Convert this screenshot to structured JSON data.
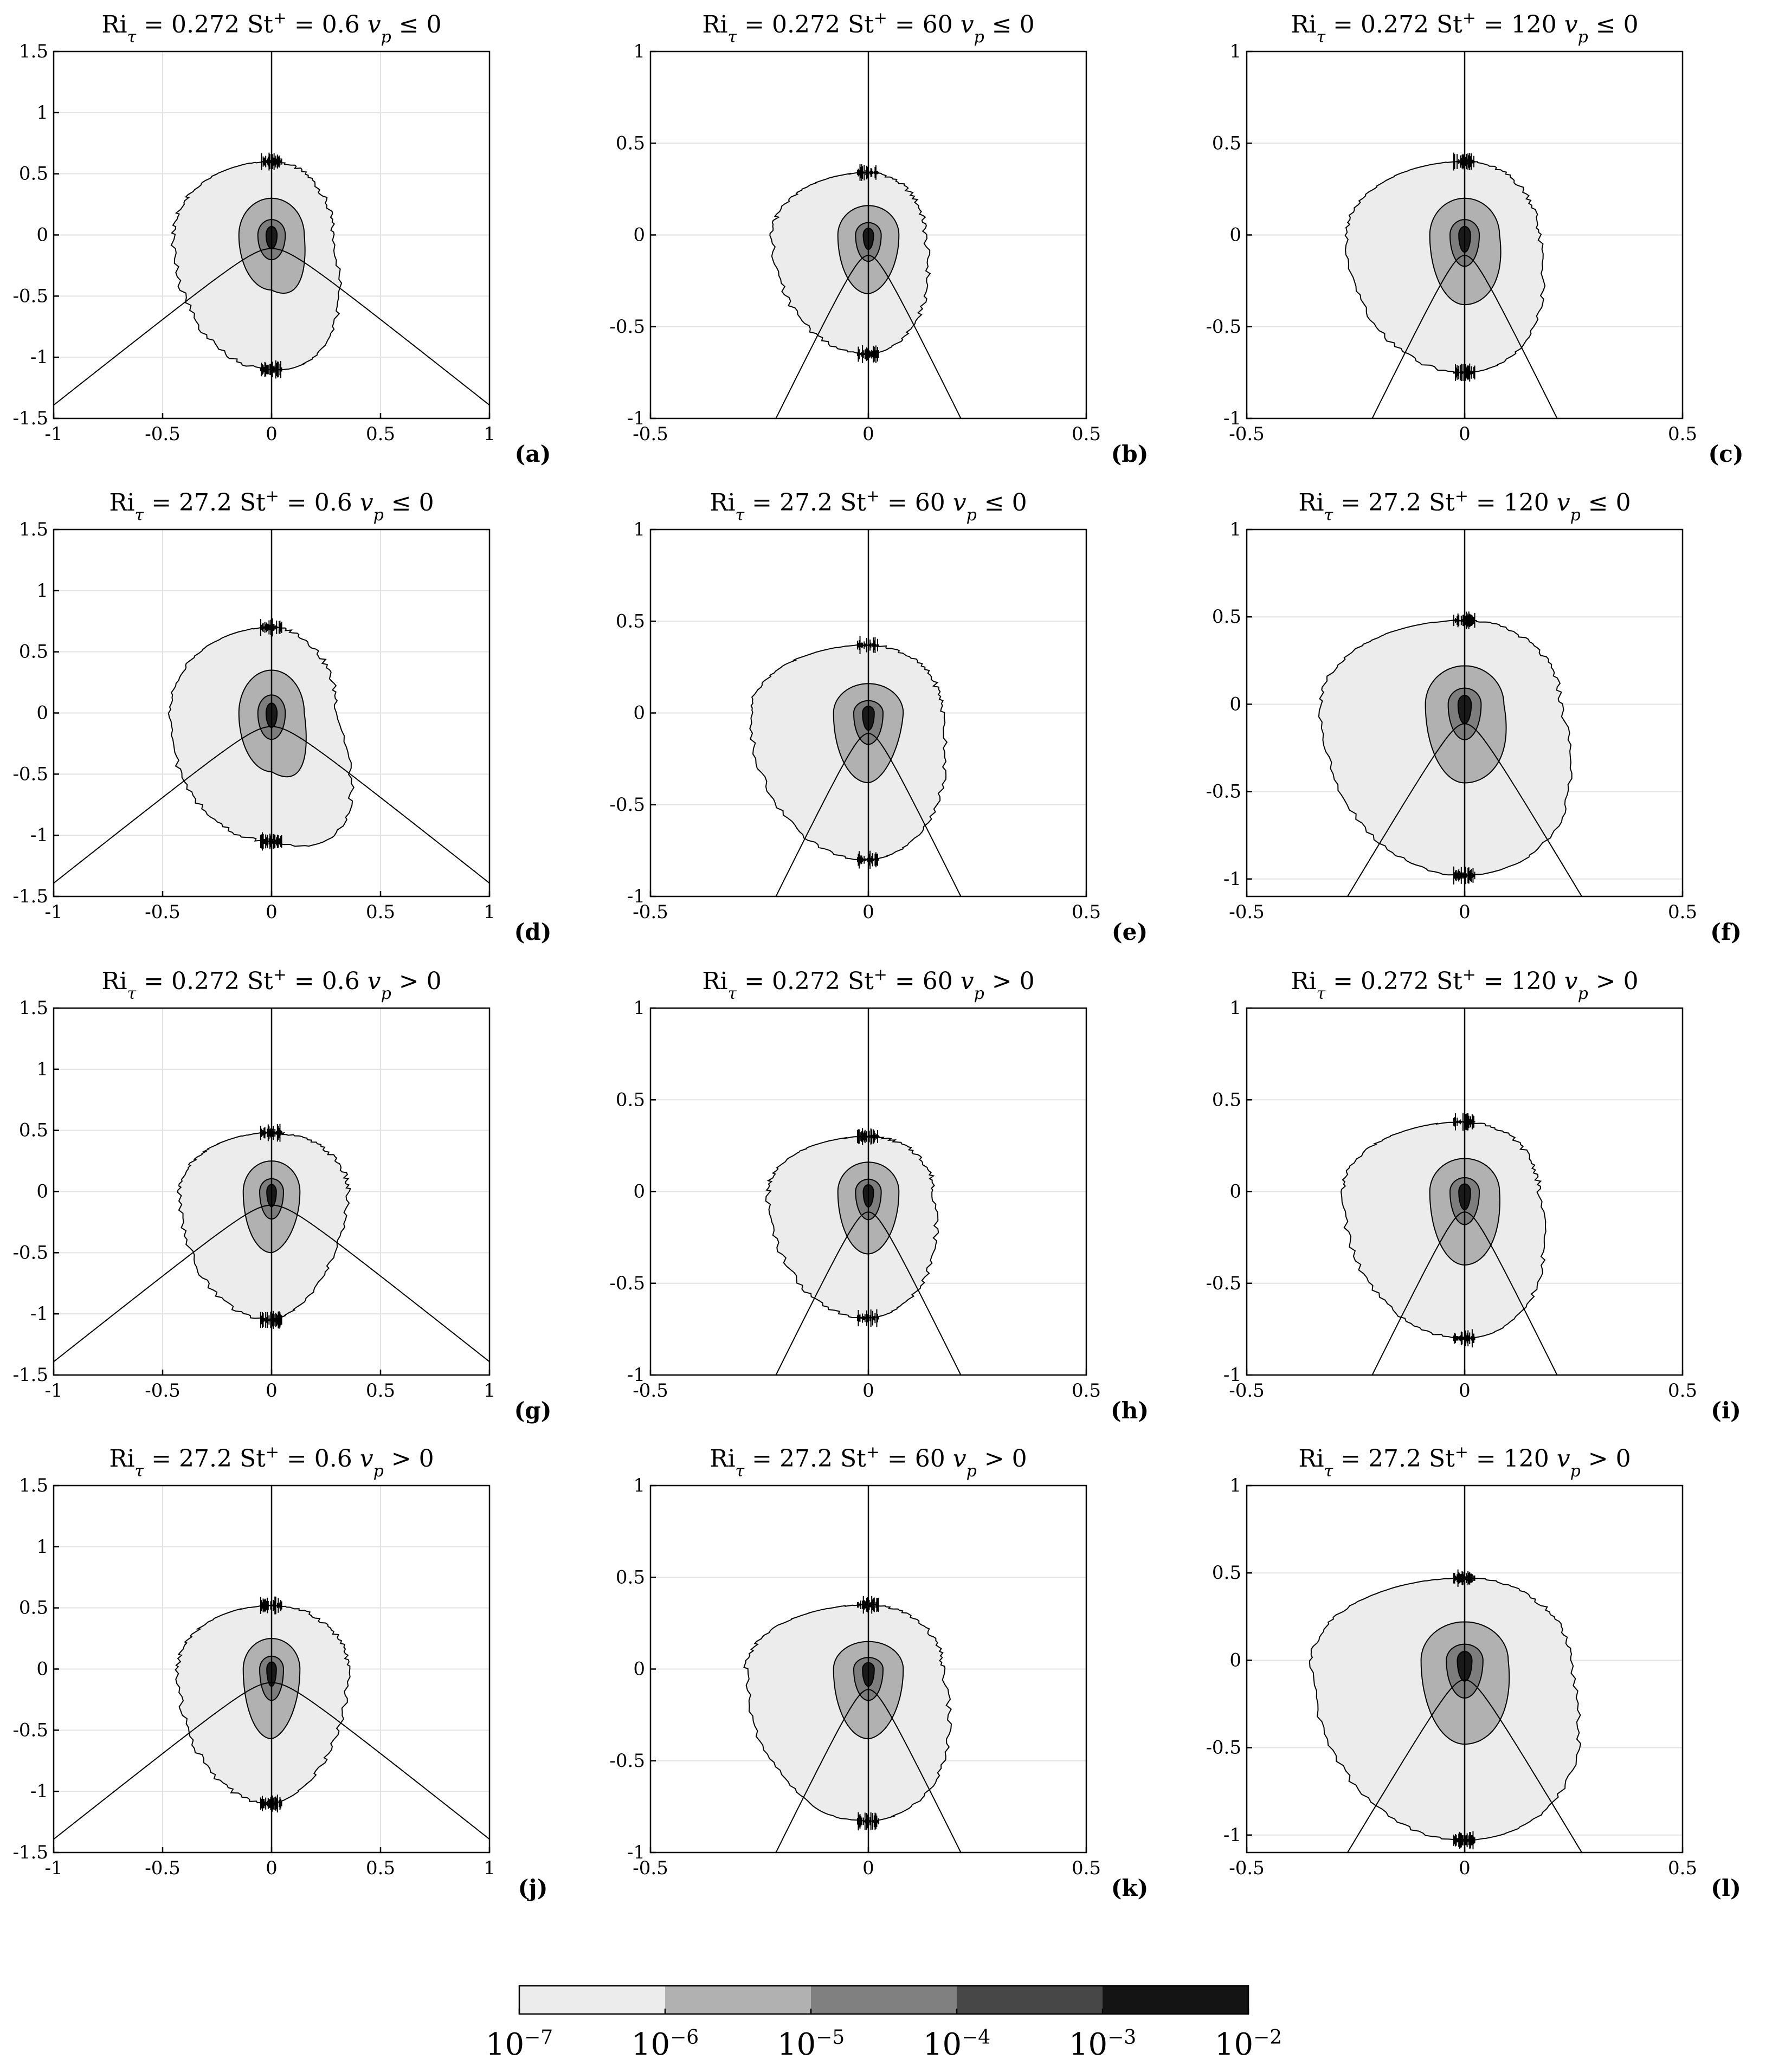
{
  "chart_data": {
    "type": "contour",
    "description_axes": "Each panel: filled contour levels with a vertical line at x = 0 and a hyperbola-like curve y ~ x^2 form",
    "panels": [
      {
        "label": "(a)",
        "ri": "0.272",
        "st": "0.6",
        "cond": "≤ 0",
        "xlim": [
          -1,
          1
        ],
        "ylim": [
          -1.5,
          1.5
        ],
        "xticks": [
          "-1",
          "-0.5",
          "0",
          "0.5",
          "1"
        ],
        "yticks": [
          "-1.5",
          "-1",
          "-0.5",
          "0",
          "0.5",
          "1",
          "1.5"
        ],
        "curve_k": 2.0,
        "outer": {
          "top": 0.6,
          "bottom": -1.1,
          "left": -0.45,
          "right": 0.28,
          "tip": [
            0.45,
            -1.18
          ]
        },
        "inner": {
          "top": 0.3,
          "bottom": -0.45,
          "width": 0.15,
          "tip": [
            0.18,
            -0.6
          ]
        }
      },
      {
        "label": "(b)",
        "ri": "0.272",
        "st": "60",
        "cond": "≤ 0",
        "xlim": [
          -0.5,
          0.5
        ],
        "ylim": [
          -1,
          1
        ],
        "xticks": [
          "-0.5",
          "0",
          "0.5"
        ],
        "yticks": [
          "-1",
          "-0.5",
          "0",
          "0.5",
          "1"
        ],
        "curve_k": 6.8,
        "outer": {
          "top": 0.34,
          "bottom": -0.65,
          "left": -0.22,
          "right": 0.13,
          "tip": [
            0.18,
            -0.62
          ]
        },
        "inner": {
          "top": 0.16,
          "bottom": -0.32,
          "width": 0.07,
          "tip": [
            0.07,
            -0.3
          ]
        }
      },
      {
        "label": "(c)",
        "ri": "0.272",
        "st": "120",
        "cond": "≤ 0",
        "xlim": [
          -0.5,
          0.5
        ],
        "ylim": [
          -1,
          1
        ],
        "xticks": [
          "-0.5",
          "0",
          "0.5"
        ],
        "yticks": [
          "-1",
          "-0.5",
          "0",
          "0.5",
          "1"
        ],
        "curve_k": 6.8,
        "outer": {
          "top": 0.4,
          "bottom": -0.75,
          "left": -0.27,
          "right": 0.17,
          "tip": [
            0.24,
            -0.75
          ]
        },
        "inner": {
          "top": 0.2,
          "bottom": -0.38,
          "width": 0.08,
          "tip": [
            0.1,
            -0.38
          ]
        }
      },
      {
        "label": "(d)",
        "ri": "27.2",
        "st": "0.6",
        "cond": "≤ 0",
        "xlim": [
          -1,
          1
        ],
        "ylim": [
          -1.5,
          1.5
        ],
        "xticks": [
          "-1",
          "-0.5",
          "0",
          "0.5",
          "1"
        ],
        "yticks": [
          "-1.5",
          "-1",
          "-0.5",
          "0",
          "0.5",
          "1",
          "1.5"
        ],
        "curve_k": 2.0,
        "outer": {
          "top": 0.7,
          "bottom": -1.05,
          "left": -0.47,
          "right": 0.3,
          "tip": [
            0.57,
            -1.38
          ]
        },
        "inner": {
          "top": 0.35,
          "bottom": -0.48,
          "width": 0.15,
          "tip": [
            0.2,
            -0.68
          ]
        }
      },
      {
        "label": "(e)",
        "ri": "27.2",
        "st": "60",
        "cond": "≤ 0",
        "xlim": [
          -0.5,
          0.5
        ],
        "ylim": [
          -1,
          1
        ],
        "xticks": [
          "-0.5",
          "0",
          "0.5"
        ],
        "yticks": [
          "-1",
          "-0.5",
          "0",
          "0.5",
          "1"
        ],
        "curve_k": 6.8,
        "outer": {
          "top": 0.37,
          "bottom": -0.8,
          "left": -0.27,
          "right": 0.17,
          "tip": [
            0.23,
            -0.77
          ]
        },
        "inner": {
          "top": 0.16,
          "bottom": -0.38,
          "width": 0.08,
          "tip": [
            0.07,
            -0.36
          ]
        }
      },
      {
        "label": "(f)",
        "ri": "27.2",
        "st": "120",
        "cond": "≤ 0",
        "xlim": [
          -0.5,
          0.5
        ],
        "ylim": [
          -1.1,
          1
        ],
        "xticks": [
          "-0.5",
          "0",
          "0.5"
        ],
        "yticks": [
          "-1",
          "-0.5",
          "0",
          "0.5",
          "1"
        ],
        "curve_k": 5.9,
        "outer": {
          "top": 0.48,
          "bottom": -0.98,
          "left": -0.33,
          "right": 0.22,
          "tip": [
            0.35,
            -0.97
          ]
        },
        "inner": {
          "top": 0.22,
          "bottom": -0.45,
          "width": 0.09,
          "tip": [
            0.12,
            -0.45
          ]
        }
      },
      {
        "label": "(g)",
        "ri": "0.272",
        "st": "0.6",
        "cond": "> 0",
        "xlim": [
          -1,
          1
        ],
        "ylim": [
          -1.5,
          1.5
        ],
        "xticks": [
          "-1",
          "-0.5",
          "0",
          "0.5",
          "1"
        ],
        "yticks": [
          "-1.5",
          "-1",
          "-0.5",
          "0",
          "0.5",
          "1",
          "1.5"
        ],
        "curve_k": 2.0,
        "outer": {
          "top": 0.48,
          "bottom": -1.05,
          "left": -0.42,
          "right": 0.35,
          "tip": [
            0.32,
            -0.95
          ]
        },
        "inner": {
          "top": 0.25,
          "bottom": -0.5,
          "width": 0.13,
          "tip": [
            0.13,
            -0.45
          ]
        }
      },
      {
        "label": "(h)",
        "ri": "0.272",
        "st": "60",
        "cond": "> 0",
        "xlim": [
          -0.5,
          0.5
        ],
        "ylim": [
          -1,
          1
        ],
        "xticks": [
          "-0.5",
          "0",
          "0.5"
        ],
        "yticks": [
          "-1",
          "-0.5",
          "0",
          "0.5",
          "1"
        ],
        "curve_k": 6.8,
        "outer": {
          "top": 0.3,
          "bottom": -0.69,
          "left": -0.23,
          "right": 0.15,
          "tip": [
            0.2,
            -0.66
          ]
        },
        "inner": {
          "top": 0.16,
          "bottom": -0.34,
          "width": 0.07,
          "tip": [
            0.07,
            -0.33
          ]
        }
      },
      {
        "label": "(i)",
        "ri": "0.272",
        "st": "120",
        "cond": "> 0",
        "xlim": [
          -0.5,
          0.5
        ],
        "ylim": [
          -1,
          1
        ],
        "xticks": [
          "-0.5",
          "0",
          "0.5"
        ],
        "yticks": [
          "-1",
          "-0.5",
          "0",
          "0.5",
          "1"
        ],
        "curve_k": 6.8,
        "outer": {
          "top": 0.38,
          "bottom": -0.8,
          "left": -0.28,
          "right": 0.17,
          "tip": [
            0.25,
            -0.8
          ]
        },
        "inner": {
          "top": 0.18,
          "bottom": -0.4,
          "width": 0.08,
          "tip": [
            0.09,
            -0.4
          ]
        }
      },
      {
        "label": "(j)",
        "ri": "27.2",
        "st": "0.6",
        "cond": "> 0",
        "xlim": [
          -1,
          1
        ],
        "ylim": [
          -1.5,
          1.5
        ],
        "xticks": [
          "-1",
          "-0.5",
          "0",
          "0.5",
          "1"
        ],
        "yticks": [
          "-1.5",
          "-1",
          "-0.5",
          "0",
          "0.5",
          "1",
          "1.5"
        ],
        "curve_k": 2.0,
        "outer": {
          "top": 0.52,
          "bottom": -1.1,
          "left": -0.43,
          "right": 0.35,
          "tip": [
            0.35,
            -1.0
          ]
        },
        "inner": {
          "top": 0.25,
          "bottom": -0.57,
          "width": 0.13,
          "tip": [
            0.13,
            -0.52
          ]
        }
      },
      {
        "label": "(k)",
        "ri": "27.2",
        "st": "60",
        "cond": "> 0",
        "xlim": [
          -0.5,
          0.5
        ],
        "ylim": [
          -1,
          1
        ],
        "xticks": [
          "-0.5",
          "0",
          "0.5"
        ],
        "yticks": [
          "-1",
          "-0.5",
          "0",
          "0.5",
          "1"
        ],
        "curve_k": 6.8,
        "outer": {
          "top": 0.35,
          "bottom": -0.83,
          "left": -0.28,
          "right": 0.17,
          "tip": [
            0.26,
            -0.8
          ]
        },
        "inner": {
          "top": 0.15,
          "bottom": -0.38,
          "width": 0.08,
          "tip": [
            0.08,
            -0.36
          ]
        }
      },
      {
        "label": "(l)",
        "ri": "27.2",
        "st": "120",
        "cond": "> 0",
        "xlim": [
          -0.5,
          0.5
        ],
        "ylim": [
          -1.1,
          1
        ],
        "xticks": [
          "-0.5",
          "0",
          "0.5"
        ],
        "yticks": [
          "-1",
          "-0.5",
          "0",
          "0.5",
          "1"
        ],
        "curve_k": 5.9,
        "outer": {
          "top": 0.47,
          "bottom": -1.03,
          "left": -0.35,
          "right": 0.24,
          "tip": [
            0.37,
            -1.02
          ]
        },
        "inner": {
          "top": 0.22,
          "bottom": -0.48,
          "width": 0.1,
          "tip": [
            0.12,
            -0.48
          ]
        }
      }
    ],
    "colorbar": {
      "levels": [
        "10",
        "10",
        "10",
        "10",
        "10",
        "10"
      ],
      "exponents": [
        "−7",
        "−6",
        "−5",
        "−4",
        "−3",
        "−2"
      ],
      "colors": [
        "#ececec",
        "#b1b1b1",
        "#808080",
        "#474747",
        "#141414"
      ]
    },
    "label_text": {
      "ri": "Ri",
      "ri_sub": "τ",
      "st": "St",
      "st_sup": "+",
      "vp": "v",
      "vp_sub": "p",
      "eq": "="
    },
    "colors": {
      "outer": "#ececec",
      "mid": "#b1b1b1",
      "inner": "#7d7d7d",
      "core": "#1a1a1a",
      "grid": "#e3e3e3",
      "axis": "#000000"
    }
  }
}
